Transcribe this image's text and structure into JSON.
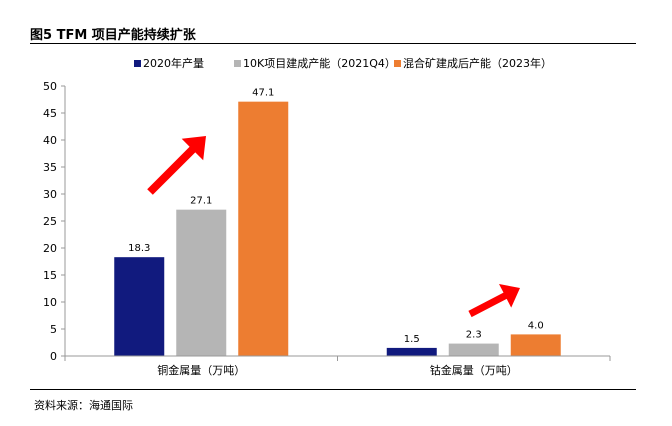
{
  "figure": {
    "title": "图5  TFM 项目产能持续扩张",
    "source": "资料来源：海通国际"
  },
  "colors": {
    "series": [
      "#111a7e",
      "#b5b5b5",
      "#ed7d31"
    ],
    "arrow": "#ff0000"
  },
  "chart_data": {
    "type": "bar",
    "categories": [
      "铜金属量（万吨）",
      "钴金属量（万吨）"
    ],
    "series": [
      {
        "name": "2020年产量",
        "values": [
          18.3,
          1.5
        ]
      },
      {
        "name": "10K项目建成产能（2021Q4）",
        "values": [
          27.1,
          2.3
        ]
      },
      {
        "name": "混合矿建成后产能（2023年）",
        "values": [
          47.1,
          4.0
        ]
      }
    ],
    "data_labels": [
      [
        "18.3",
        "1.5"
      ],
      [
        "27.1",
        "2.3"
      ],
      [
        "47.1",
        "4.0"
      ]
    ],
    "yticks": [
      "0",
      "5",
      "10",
      "15",
      "20",
      "25",
      "30",
      "35",
      "40",
      "45",
      "50"
    ],
    "ylim": [
      0,
      50
    ],
    "legend_position": "top",
    "grid": false,
    "annotations": [
      "red-arrow-up",
      "red-arrow-up"
    ]
  }
}
